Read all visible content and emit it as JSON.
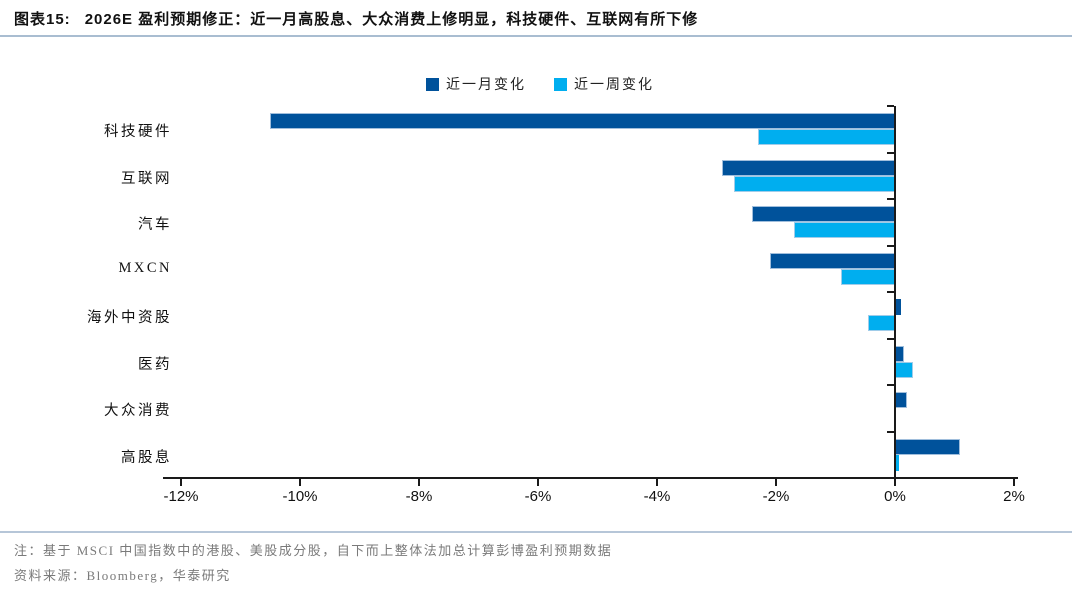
{
  "header": {
    "fig_label": "图表15:",
    "title": "2026E 盈利预期修正：近一月高股息、大众消费上修明显，科技硬件、互联网有所下修"
  },
  "chart_data": {
    "type": "bar",
    "orientation": "horizontal",
    "title": "2026E 盈利预期修正",
    "categories": [
      "科技硬件",
      "互联网",
      "汽车",
      "MXCN",
      "海外中资股",
      "医药",
      "大众消费",
      "高股息"
    ],
    "series": [
      {
        "name": "近一月变化",
        "color": "#00529b",
        "values": [
          -10.5,
          -2.9,
          -2.4,
          -2.1,
          0.1,
          0.15,
          0.2,
          1.1
        ]
      },
      {
        "name": "近一周变化",
        "color": "#00aeef",
        "values": [
          -2.3,
          -2.7,
          -1.7,
          -0.9,
          -0.45,
          0.3,
          0.0,
          0.07
        ]
      }
    ],
    "xlim": [
      -12,
      2
    ],
    "x_tick_values": [
      -12,
      -10,
      -8,
      -6,
      -4,
      -2,
      0,
      2
    ],
    "x_tick_labels": [
      "-12%",
      "-10%",
      "-8%",
      "-6%",
      "-4%",
      "-2%",
      "0%",
      "2%"
    ],
    "unit": "%",
    "grid": false,
    "legend_position": "top"
  },
  "footer": {
    "note": "注：基于 MSCI 中国指数中的港股、美股成分股，自下而上整体法加总计算彭博盈利预期数据",
    "source": "资料来源：Bloomberg，华泰研究"
  }
}
